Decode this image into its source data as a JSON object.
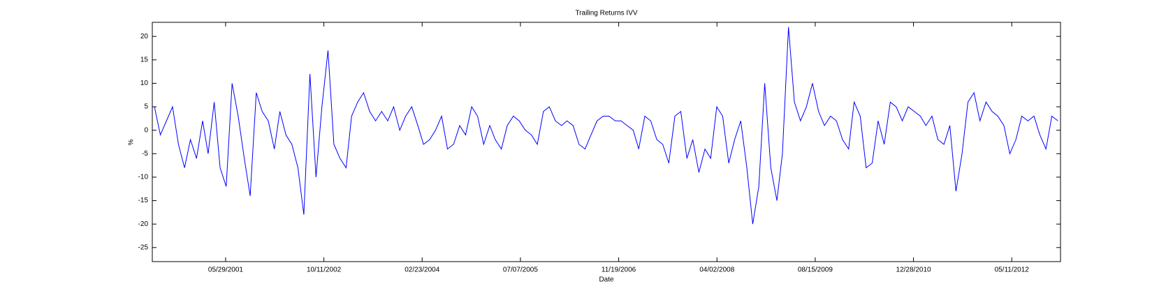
{
  "chart_data": {
    "type": "line",
    "title": "Trailing Returns IVV",
    "x_label": "Date",
    "y_label": "%",
    "color": "#0000ff",
    "xlim": [
      "2000-05-21",
      "2013-01-14"
    ],
    "xticks": [
      {
        "value": "2001-05-29",
        "label": "05/29/2001"
      },
      {
        "value": "2002-10-11",
        "label": "10/11/2002"
      },
      {
        "value": "2004-02-23",
        "label": "02/23/2004"
      },
      {
        "value": "2005-07-07",
        "label": "07/07/2005"
      },
      {
        "value": "2006-11-19",
        "label": "11/19/2006"
      },
      {
        "value": "2008-04-02",
        "label": "04/02/2008"
      },
      {
        "value": "2009-08-15",
        "label": "08/15/2009"
      },
      {
        "value": "2010-12-28",
        "label": "12/28/2010"
      },
      {
        "value": "2012-05-11",
        "label": "05/11/2012"
      }
    ],
    "ylim": [
      -28,
      23
    ],
    "yticks": [
      -25,
      -20,
      -15,
      -10,
      -5,
      0,
      5,
      10,
      15,
      20
    ],
    "x": [
      "2000-06-01",
      "2000-07-01",
      "2000-08-01",
      "2000-09-01",
      "2000-10-01",
      "2000-11-01",
      "2000-12-01",
      "2001-01-01",
      "2001-02-01",
      "2001-03-01",
      "2001-04-01",
      "2001-05-01",
      "2001-06-01",
      "2001-07-01",
      "2001-08-01",
      "2001-09-01",
      "2001-10-01",
      "2001-11-01",
      "2001-12-01",
      "2002-01-01",
      "2002-02-01",
      "2002-03-01",
      "2002-04-01",
      "2002-05-01",
      "2002-06-01",
      "2002-07-01",
      "2002-08-01",
      "2002-09-01",
      "2002-10-01",
      "2002-11-01",
      "2002-12-01",
      "2003-01-01",
      "2003-02-01",
      "2003-03-01",
      "2003-04-01",
      "2003-05-01",
      "2003-06-01",
      "2003-07-01",
      "2003-08-01",
      "2003-09-01",
      "2003-10-01",
      "2003-11-01",
      "2003-12-01",
      "2004-01-01",
      "2004-02-01",
      "2004-03-01",
      "2004-04-01",
      "2004-05-01",
      "2004-06-01",
      "2004-07-01",
      "2004-08-01",
      "2004-09-01",
      "2004-10-01",
      "2004-11-01",
      "2004-12-01",
      "2005-01-01",
      "2005-02-01",
      "2005-03-01",
      "2005-04-01",
      "2005-05-01",
      "2005-06-01",
      "2005-07-01",
      "2005-08-01",
      "2005-09-01",
      "2005-10-01",
      "2005-11-01",
      "2005-12-01",
      "2006-01-01",
      "2006-02-01",
      "2006-03-01",
      "2006-04-01",
      "2006-05-01",
      "2006-06-01",
      "2006-07-01",
      "2006-08-01",
      "2006-09-01",
      "2006-10-01",
      "2006-11-01",
      "2006-12-01",
      "2007-01-01",
      "2007-02-01",
      "2007-03-01",
      "2007-04-01",
      "2007-05-01",
      "2007-06-01",
      "2007-07-01",
      "2007-08-01",
      "2007-09-01",
      "2007-10-01",
      "2007-11-01",
      "2007-12-01",
      "2008-01-01",
      "2008-02-01",
      "2008-03-01",
      "2008-04-01",
      "2008-05-01",
      "2008-06-01",
      "2008-07-01",
      "2008-08-01",
      "2008-09-01",
      "2008-10-01",
      "2008-11-01",
      "2008-12-01",
      "2009-01-01",
      "2009-02-01",
      "2009-03-01",
      "2009-04-01",
      "2009-05-01",
      "2009-06-01",
      "2009-07-01",
      "2009-08-01",
      "2009-09-01",
      "2009-10-01",
      "2009-11-01",
      "2009-12-01",
      "2010-01-01",
      "2010-02-01",
      "2010-03-01",
      "2010-04-01",
      "2010-05-01",
      "2010-06-01",
      "2010-07-01",
      "2010-08-01",
      "2010-09-01",
      "2010-10-01",
      "2010-11-01",
      "2010-12-01",
      "2011-01-01",
      "2011-02-01",
      "2011-03-01",
      "2011-04-01",
      "2011-05-01",
      "2011-06-01",
      "2011-07-01",
      "2011-08-01",
      "2011-09-01",
      "2011-10-01",
      "2011-11-01",
      "2011-12-01",
      "2012-01-01",
      "2012-02-01",
      "2012-03-01",
      "2012-04-01",
      "2012-05-01",
      "2012-06-01",
      "2012-07-01",
      "2012-08-01",
      "2012-09-01",
      "2012-10-01",
      "2012-11-01",
      "2012-12-01",
      "2013-01-01"
    ],
    "values": [
      5,
      -1,
      2,
      5,
      -3,
      -8,
      -2,
      -6,
      2,
      -5,
      6,
      -8,
      -12,
      10,
      3,
      -6,
      -14,
      8,
      4,
      2,
      -4,
      4,
      -1,
      -3,
      -8,
      -18,
      12,
      -10,
      5,
      17,
      -3,
      -6,
      -8,
      3,
      6,
      8,
      4,
      2,
      4,
      2,
      5,
      0,
      3,
      5,
      1,
      -3,
      -2,
      0,
      3,
      -4,
      -3,
      1,
      -1,
      5,
      3,
      -3,
      1,
      -2,
      -4,
      1,
      3,
      2,
      0,
      -1,
      -3,
      4,
      5,
      2,
      1,
      2,
      1,
      -3,
      -4,
      -1,
      2,
      3,
      3,
      2,
      2,
      1,
      0,
      -4,
      3,
      2,
      -2,
      -3,
      -7,
      3,
      4,
      -6,
      -2,
      -9,
      -4,
      -6,
      5,
      3,
      -7,
      -2,
      2,
      -8,
      -20,
      -12,
      10,
      -8,
      -15,
      -5,
      22,
      6,
      2,
      5,
      10,
      4,
      1,
      3,
      2,
      -2,
      -4,
      6,
      3,
      -8,
      -7,
      2,
      -3,
      6,
      5,
      2,
      5,
      4,
      3,
      1,
      3,
      -2,
      -3,
      1,
      -13,
      -5,
      6,
      8,
      2,
      6,
      4,
      3,
      1,
      -5,
      -2,
      3,
      2,
      3,
      -1,
      -4,
      3,
      2
    ]
  }
}
